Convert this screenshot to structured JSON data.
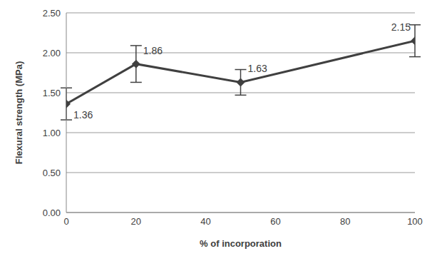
{
  "chart_data": {
    "type": "line",
    "x_label": "% of incorporation",
    "y_label": "Flexural strength (MPa)",
    "x": [
      0,
      20,
      50,
      100
    ],
    "values": [
      1.36,
      1.86,
      1.63,
      2.15
    ],
    "errors": [
      0.2,
      0.23,
      0.16,
      0.2
    ],
    "color": "#404040",
    "marker": "diamond",
    "line_style": "solid",
    "data_labels": true,
    "grid": true,
    "xlim": [
      0,
      100
    ],
    "xticks": [
      0,
      20,
      40,
      60,
      80,
      100
    ],
    "ylim": [
      0,
      2.5
    ],
    "yticks": [
      {
        "value": 0,
        "label": "0.00"
      },
      {
        "value": 0.5,
        "label": "0.50"
      },
      {
        "value": 1,
        "label": "1.00"
      },
      {
        "value": 1.5,
        "label": "1.50"
      },
      {
        "value": 2,
        "label": "2.00"
      },
      {
        "value": 2.5,
        "label": "2.50"
      }
    ]
  }
}
